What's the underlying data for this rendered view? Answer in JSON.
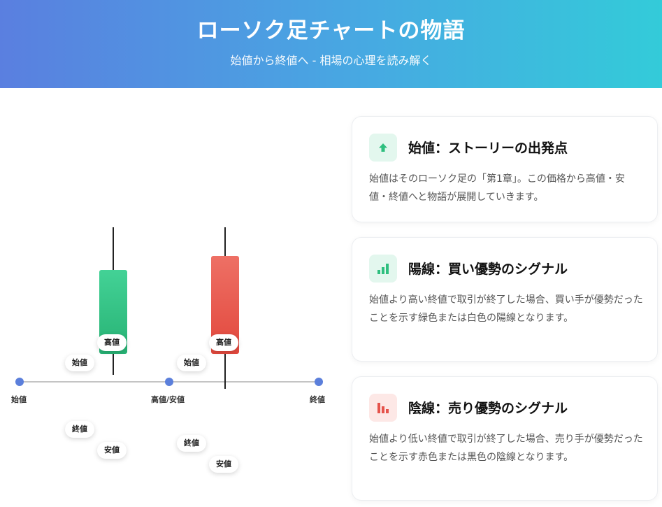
{
  "header": {
    "title": "ローソク足チャートの物語",
    "subtitle": "始値から終値へ - 相場の心理を読み解く"
  },
  "diagram": {
    "axis_labels": [
      "始値",
      "高値/安値",
      "終値"
    ],
    "bullish_labels": {
      "high": "高値",
      "open": "始値",
      "close": "終値",
      "low": "安値"
    },
    "bearish_labels": {
      "high": "高値",
      "open": "始値",
      "close": "終値",
      "low": "安値"
    },
    "colors": {
      "bullish": "#2fbf7f",
      "bearish": "#e5534b",
      "axis_dot": "#5b7fdb"
    }
  },
  "cards": [
    {
      "icon": "arrow-up-icon",
      "title": "始値：ストーリーの出発点",
      "description": "始値はそのローソク足の「第1章」。この価格から高値・安値・終値へと物語が展開していきます。"
    },
    {
      "icon": "bar-chart-up-icon",
      "title": "陽線：買い優勢のシグナル",
      "description": "始値より高い終値で取引が終了した場合、買い手が優勢だったことを示す緑色または白色の陽線となります。"
    },
    {
      "icon": "bar-chart-down-icon",
      "title": "陰線：売り優勢のシグナル",
      "description": "始値より低い終値で取引が終了した場合、売り手が優勢だったことを示す赤色または黒色の陰線となります。"
    }
  ]
}
